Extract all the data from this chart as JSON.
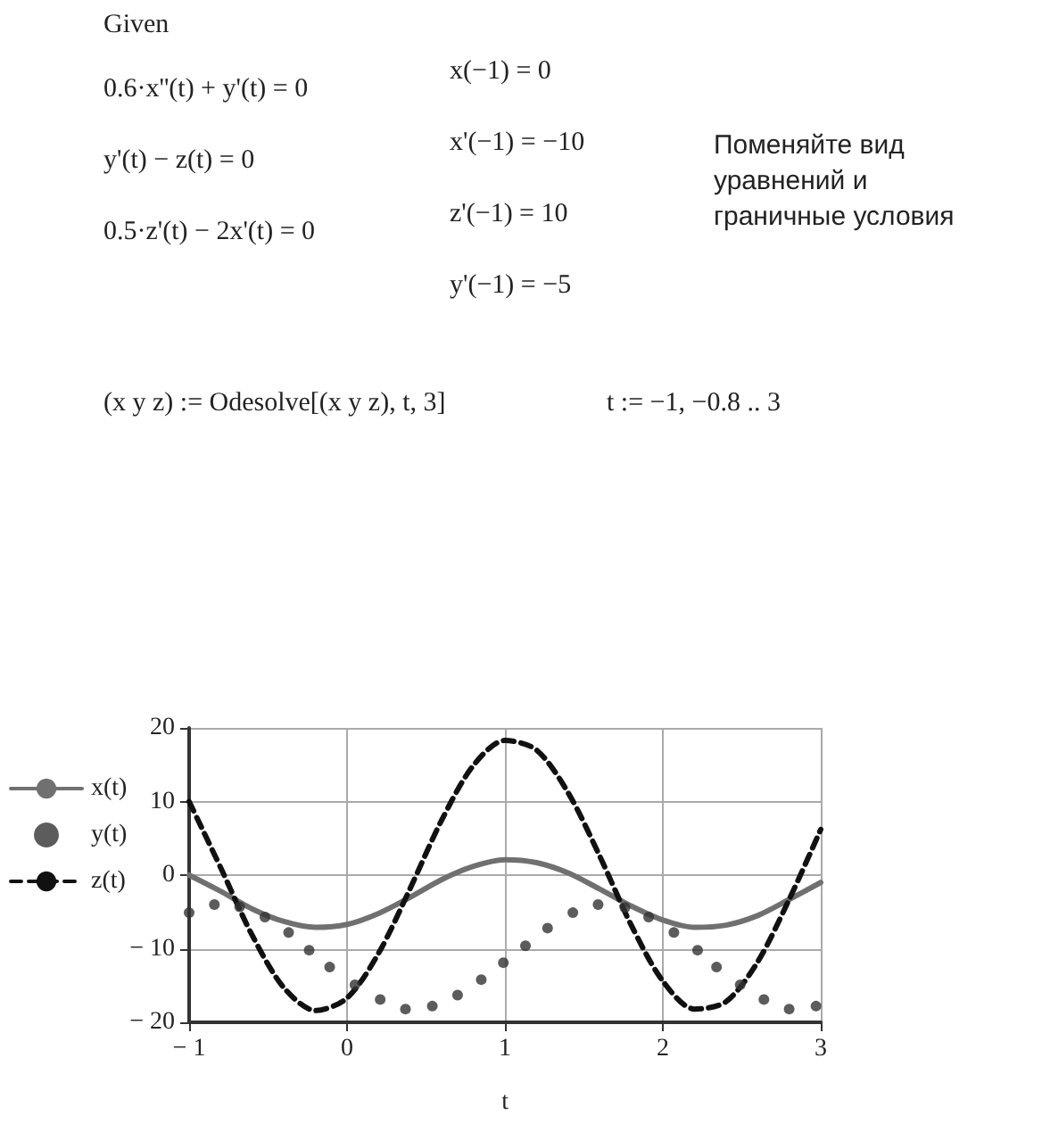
{
  "chart_data": {
    "type": "line",
    "annotations": [
      "Given",
      "0.6·x''(t) + y'(t) = 0",
      "y'(t) − z(t) = 0",
      "0.5·z'(t) − 2x'(t) = 0",
      "x(−1) = 0",
      "x'(−1) = −10",
      "z'(−1) = 10",
      "y'(−1) = −5",
      "Поменяйте вид уравнений и граничные условия",
      "(x y z) := Odesolve[(x y z), t, 3]",
      "t := −1, −0.8 .. 3"
    ],
    "xlabel": "t",
    "x": [
      -1,
      -0.8,
      -0.6,
      -0.4,
      -0.2,
      0,
      0.2,
      0.4,
      0.6,
      0.8,
      1,
      1.2,
      1.4,
      1.6,
      1.8,
      2,
      2.2,
      2.4,
      2.6,
      2.8,
      3
    ],
    "series": [
      {
        "name": "x(t)",
        "color": "#707070",
        "line_style": "solid",
        "marker": "none",
        "values": [
          0,
          -2.2,
          -4.6,
          -6.3,
          -7.1,
          -6.7,
          -5.2,
          -3.0,
          -0.6,
          1.2,
          2.1,
          1.7,
          0.3,
          -1.9,
          -4.2,
          -6.1,
          -7.1,
          -6.8,
          -5.5,
          -3.3,
          -1.0
        ]
      },
      {
        "name": "y(t)",
        "type": "scatter",
        "color": "#333333",
        "marker": "circle",
        "x": [
          -1,
          -0.84,
          -0.68,
          -0.52,
          -0.37,
          -0.24,
          -0.11,
          0.05,
          0.21,
          0.37,
          0.54,
          0.7,
          0.85,
          0.99,
          1.13,
          1.27,
          1.43,
          1.59,
          1.76,
          1.91,
          2.07,
          2.22,
          2.34,
          2.49,
          2.64,
          2.8,
          2.97
        ],
        "values": [
          -5.1,
          -4.0,
          -4.3,
          -5.7,
          -7.8,
          -10.2,
          -12.5,
          -14.9,
          -16.9,
          -18.2,
          -17.8,
          -16.3,
          -14.2,
          -11.9,
          -9.6,
          -7.2,
          -5.1,
          -4.0,
          -4.4,
          -5.7,
          -7.8,
          -10.2,
          -12.5,
          -14.9,
          -16.9,
          -18.2,
          -17.8
        ]
      },
      {
        "name": "z(t)",
        "color": "#111111",
        "line_style": "dashed",
        "marker": "none",
        "values": [
          10,
          1.0,
          -8.2,
          -15.3,
          -18.4,
          -16.7,
          -10.6,
          -1.8,
          7.5,
          14.9,
          18.3,
          17.0,
          11.2,
          2.6,
          -6.8,
          -14.4,
          -18.2,
          -17.2,
          -11.8,
          -3.3,
          6.2
        ]
      }
    ],
    "xlim": [
      -1,
      3
    ],
    "xticks": [
      -1,
      0,
      1,
      2,
      3
    ],
    "ylim": [
      -20,
      20
    ],
    "yticks": [
      -20,
      -10,
      0,
      10,
      20
    ],
    "grid": true,
    "legend": "left"
  }
}
